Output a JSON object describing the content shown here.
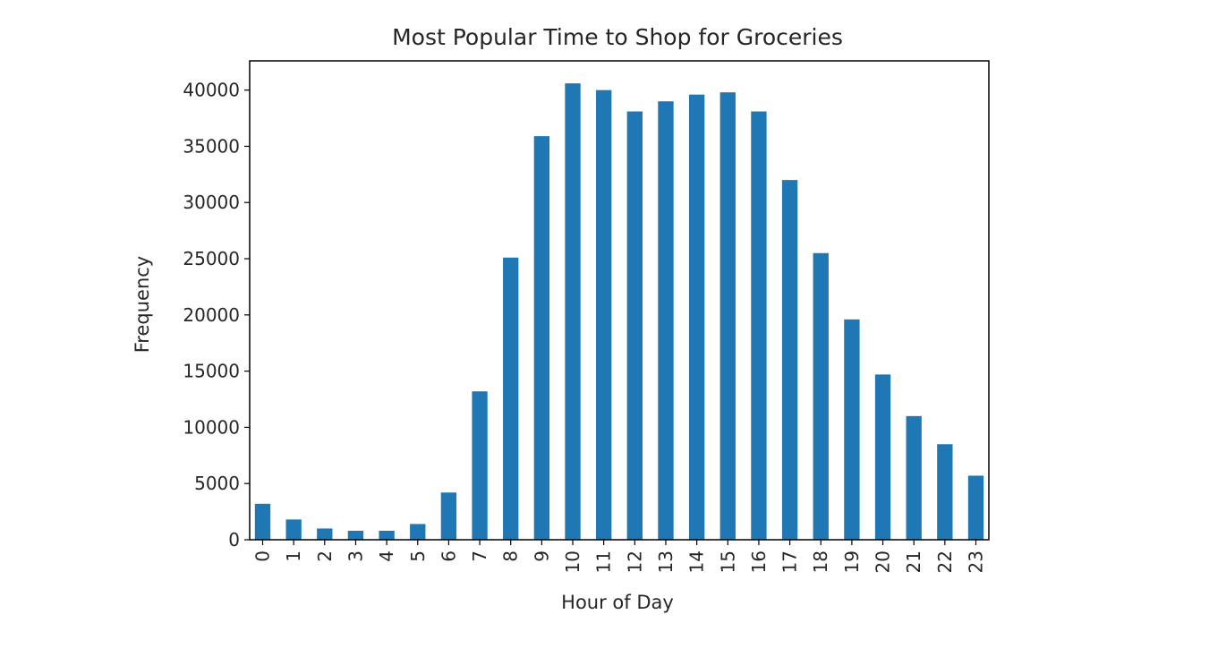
{
  "chart_data": {
    "type": "bar",
    "title": "Most Popular Time to Shop for Groceries",
    "xlabel": "Hour of Day",
    "ylabel": "Frequency",
    "categories": [
      "0",
      "1",
      "2",
      "3",
      "4",
      "5",
      "6",
      "7",
      "8",
      "9",
      "10",
      "11",
      "12",
      "13",
      "14",
      "15",
      "16",
      "17",
      "18",
      "19",
      "20",
      "21",
      "22",
      "23"
    ],
    "values": [
      3200,
      1800,
      1000,
      800,
      800,
      1400,
      4200,
      13200,
      25100,
      35900,
      40600,
      40000,
      38100,
      39000,
      39600,
      39800,
      38100,
      32000,
      25500,
      19600,
      14700,
      11000,
      8500,
      5700
    ],
    "yticks": [
      0,
      5000,
      10000,
      15000,
      20000,
      25000,
      30000,
      35000,
      40000
    ],
    "ylim": [
      0,
      42600
    ],
    "bar_color": "#1f77b4",
    "grid": false,
    "legend": "none"
  }
}
